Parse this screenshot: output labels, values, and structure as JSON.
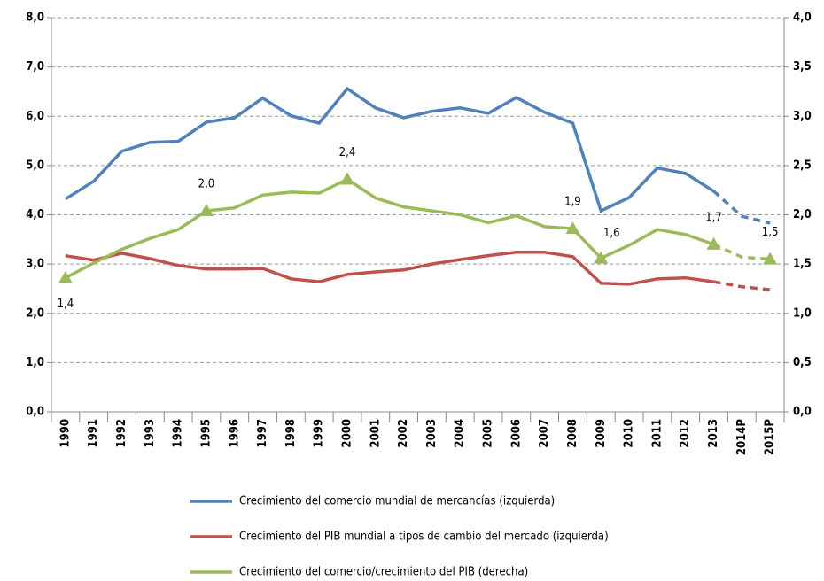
{
  "chart_data": {
    "type": "line",
    "categories": [
      "1990",
      "1991",
      "1992",
      "1993",
      "1994",
      "1995",
      "1996",
      "1997",
      "1998",
      "1999",
      "2000",
      "2001",
      "2002",
      "2003",
      "2004",
      "2005",
      "2006",
      "2007",
      "2008",
      "2009",
      "2010",
      "2011",
      "2012",
      "2013",
      "2014P",
      "2015P"
    ],
    "ylim": [
      0,
      8
    ],
    "yticks": [
      {
        "value": 0,
        "label": "0,0"
      },
      {
        "value": 1,
        "label": "1,0"
      },
      {
        "value": 2,
        "label": "2,0"
      },
      {
        "value": 3,
        "label": "3,0"
      },
      {
        "value": 4,
        "label": "4,0"
      },
      {
        "value": 5,
        "label": "5,0"
      },
      {
        "value": 6,
        "label": "6,0"
      },
      {
        "value": 7,
        "label": "7,0"
      },
      {
        "value": 8,
        "label": "8,0"
      }
    ],
    "y2lim": [
      0,
      4
    ],
    "y2ticks": [
      {
        "value": 0,
        "label": "0,0"
      },
      {
        "value": 0.5,
        "label": "0,5"
      },
      {
        "value": 1,
        "label": "1,0"
      },
      {
        "value": 1.5,
        "label": "1,5"
      },
      {
        "value": 2,
        "label": "2,0"
      },
      {
        "value": 2.5,
        "label": "2,5"
      },
      {
        "value": 3,
        "label": "3,0"
      },
      {
        "value": 3.5,
        "label": "3,5"
      },
      {
        "value": 4,
        "label": "4,0"
      }
    ],
    "grid": true,
    "legend": "bottom",
    "series": [
      {
        "name": "Crecimiento del comercio mundial de mercancías (izquierda)",
        "color": "#4f81bd",
        "values": [
          4.32,
          4.68,
          5.29,
          5.47,
          5.49,
          5.88,
          5.97,
          6.37,
          6.01,
          5.86,
          6.56,
          6.17,
          5.97,
          6.1,
          6.17,
          6.06,
          6.38,
          6.08,
          5.86,
          4.08,
          4.35,
          4.95,
          4.84,
          4.48,
          3.97,
          3.83
        ]
      },
      {
        "name": "Crecimiento del PIB mundial a tipos de cambio del mercado (izquierda)",
        "color": "#c0504d",
        "values": [
          3.17,
          3.08,
          3.22,
          3.11,
          2.97,
          2.9,
          2.9,
          2.91,
          2.7,
          2.64,
          2.79,
          2.84,
          2.88,
          3.0,
          3.09,
          3.17,
          3.24,
          3.24,
          3.15,
          2.61,
          2.59,
          2.7,
          2.72,
          2.64,
          2.54,
          2.48
        ]
      },
      {
        "name": "Crecimiento del comercio/crecimiento del PIB (derecha)",
        "color": "#9bbb59",
        "axis": "y2",
        "values": [
          1.36,
          1.51,
          1.65,
          1.76,
          1.85,
          2.04,
          2.07,
          2.2,
          2.23,
          2.22,
          2.36,
          2.17,
          2.08,
          2.04,
          2.0,
          1.92,
          1.99,
          1.88,
          1.86,
          1.56,
          1.69,
          1.85,
          1.8,
          1.7,
          1.57,
          1.55
        ],
        "value_labels": [
          "1,4",
          null,
          null,
          null,
          null,
          "2,0",
          null,
          null,
          null,
          null,
          "2,4",
          null,
          null,
          null,
          null,
          null,
          null,
          null,
          "1,9",
          "1,6",
          null,
          null,
          null,
          "1,7",
          null,
          "1,5"
        ]
      }
    ]
  }
}
